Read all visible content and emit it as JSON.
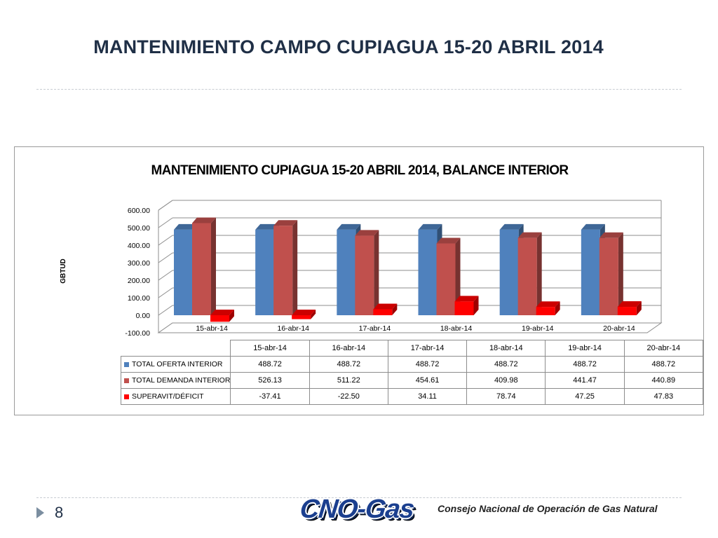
{
  "slide": {
    "title": "MANTENIMIENTO CAMPO CUPIAGUA 15-20 ABRIL 2014",
    "page_number": "8",
    "logo_text": "CNO-Gas",
    "footer_text": "Consejo Nacional de Operación de Gas Natural"
  },
  "chart_data": {
    "type": "bar",
    "title": "MANTENIMIENTO CUPIAGUA 15-20 ABRIL 2014, BALANCE INTERIOR",
    "xlabel": "",
    "ylabel": "GBTUD",
    "ylim": [
      -100,
      600
    ],
    "y_ticks": [
      "600.00",
      "500.00",
      "400.00",
      "300.00",
      "200.00",
      "100.00",
      "0.00",
      "-100.00"
    ],
    "grid": true,
    "categories": [
      "15-abr-14",
      "16-abr-14",
      "17-abr-14",
      "18-abr-14",
      "19-abr-14",
      "20-abr-14"
    ],
    "series": [
      {
        "name": "TOTAL OFERTA INTERIOR",
        "color": "#4f81bd",
        "values": [
          488.72,
          488.72,
          488.72,
          488.72,
          488.72,
          488.72
        ],
        "labels": [
          "488.72",
          "488.72",
          "488.72",
          "488.72",
          "488.72",
          "488.72"
        ]
      },
      {
        "name": "TOTAL DEMANDA INTERIOR",
        "color": "#c0504d",
        "values": [
          526.13,
          511.22,
          454.61,
          409.98,
          441.47,
          440.89
        ],
        "labels": [
          "526.13",
          "511.22",
          "454.61",
          "409.98",
          "441.47",
          "440.89"
        ]
      },
      {
        "name": "SUPERAVIT/DÉFICIT",
        "color": "#ff0000",
        "values": [
          -37.41,
          -22.5,
          34.11,
          78.74,
          47.25,
          47.83
        ],
        "labels": [
          "-37.41",
          "-22.50",
          "34.11",
          "78.74",
          "47.25",
          "47.83"
        ]
      }
    ],
    "legend_placement": "data-table-below"
  }
}
